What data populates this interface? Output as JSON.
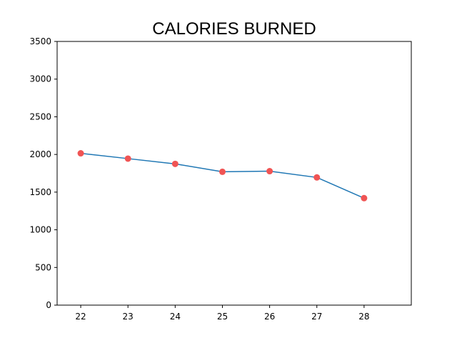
{
  "chart_data": {
    "type": "line",
    "title": "CALORIES BURNED",
    "xlabel": "",
    "ylabel": "",
    "x": [
      22,
      23,
      24,
      25,
      26,
      27,
      28
    ],
    "series": [
      {
        "values": [
          2015,
          1945,
          1875,
          1770,
          1778,
          1695,
          1420
        ]
      }
    ],
    "xlim": [
      21.5,
      29
    ],
    "ylim": [
      0,
      3500
    ],
    "xticks": [
      "22",
      "23",
      "24",
      "25",
      "26",
      "27",
      "28"
    ],
    "yticks": [
      "0",
      "500",
      "1000",
      "1500",
      "2000",
      "2500",
      "3000",
      "3500"
    ],
    "grid": false,
    "line_color": "#1f77b4",
    "marker_color": "#f05454"
  }
}
